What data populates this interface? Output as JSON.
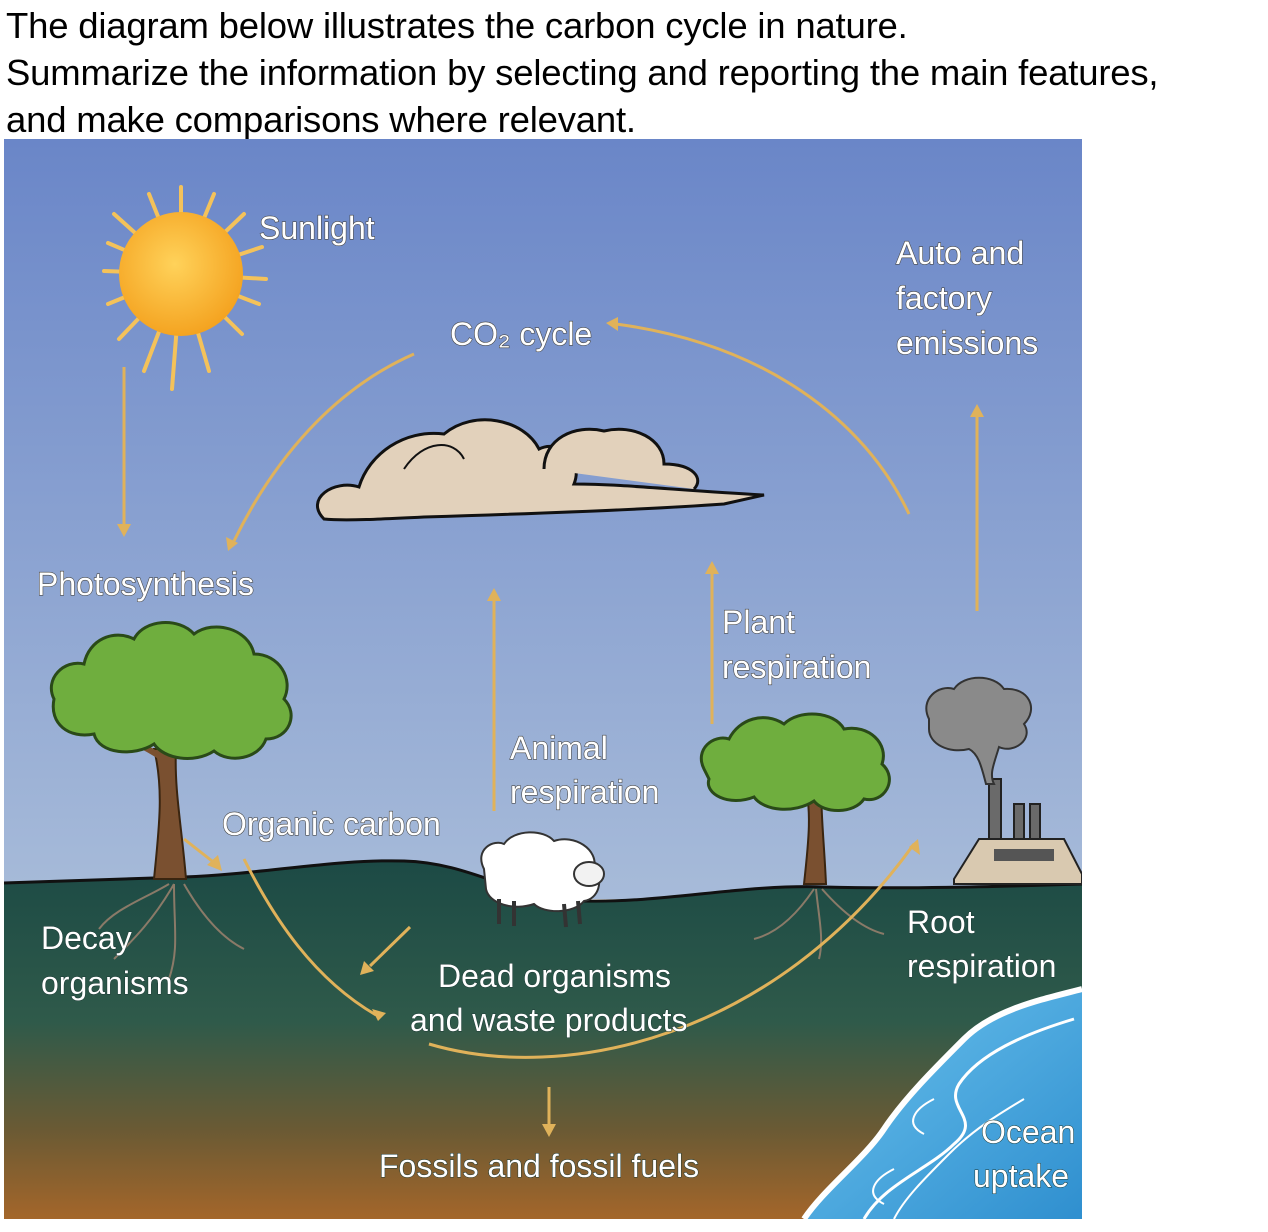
{
  "prompt": {
    "lines": [
      "The diagram below illustrates the carbon cycle in nature.",
      "Summarize the information by selecting and reporting the main features,",
      "and make comparisons where relevant."
    ]
  },
  "diagram": {
    "labels": {
      "sunlight": "Sunlight",
      "co2_cycle": "CO₂ cycle",
      "auto_emissions_1": "Auto  and",
      "auto_emissions_2": "factory",
      "auto_emissions_3": "emissions",
      "photosynthesis": "Photosynthesis",
      "plant_respiration_1": "Plant",
      "plant_respiration_2": "respiration",
      "animal_respiration_1": "Animal",
      "animal_respiration_2": "respiration",
      "organic_carbon": "Organic  carbon",
      "decay_organisms_1": "Decay",
      "decay_organisms_2": "organisms",
      "dead_organisms_1": "Dead  organisms",
      "dead_organisms_2": "and  waste  products",
      "root_respiration_1": "Root",
      "root_respiration_2": "respiration",
      "fossils": "Fossils  and  fossil  fuels",
      "ocean_uptake_1": "Ocean",
      "ocean_uptake_2": "uptake"
    },
    "colors": {
      "sky_top": "#6a86c8",
      "sky_bottom": "#9fb6d6",
      "ground_top": "#1e4a45",
      "ground_bottom": "#8a5a2a",
      "ocean": "#4aa8dd",
      "arrow": "#e0b25a",
      "sun": "#f6b02a",
      "tree_leaves": "#6fae3e",
      "cloud": "#e3d2bb"
    },
    "icons": [
      "sun-icon",
      "cloud-icon",
      "tree-icon",
      "sheep-icon",
      "factory-icon",
      "smoke-icon",
      "ocean-icon"
    ]
  }
}
